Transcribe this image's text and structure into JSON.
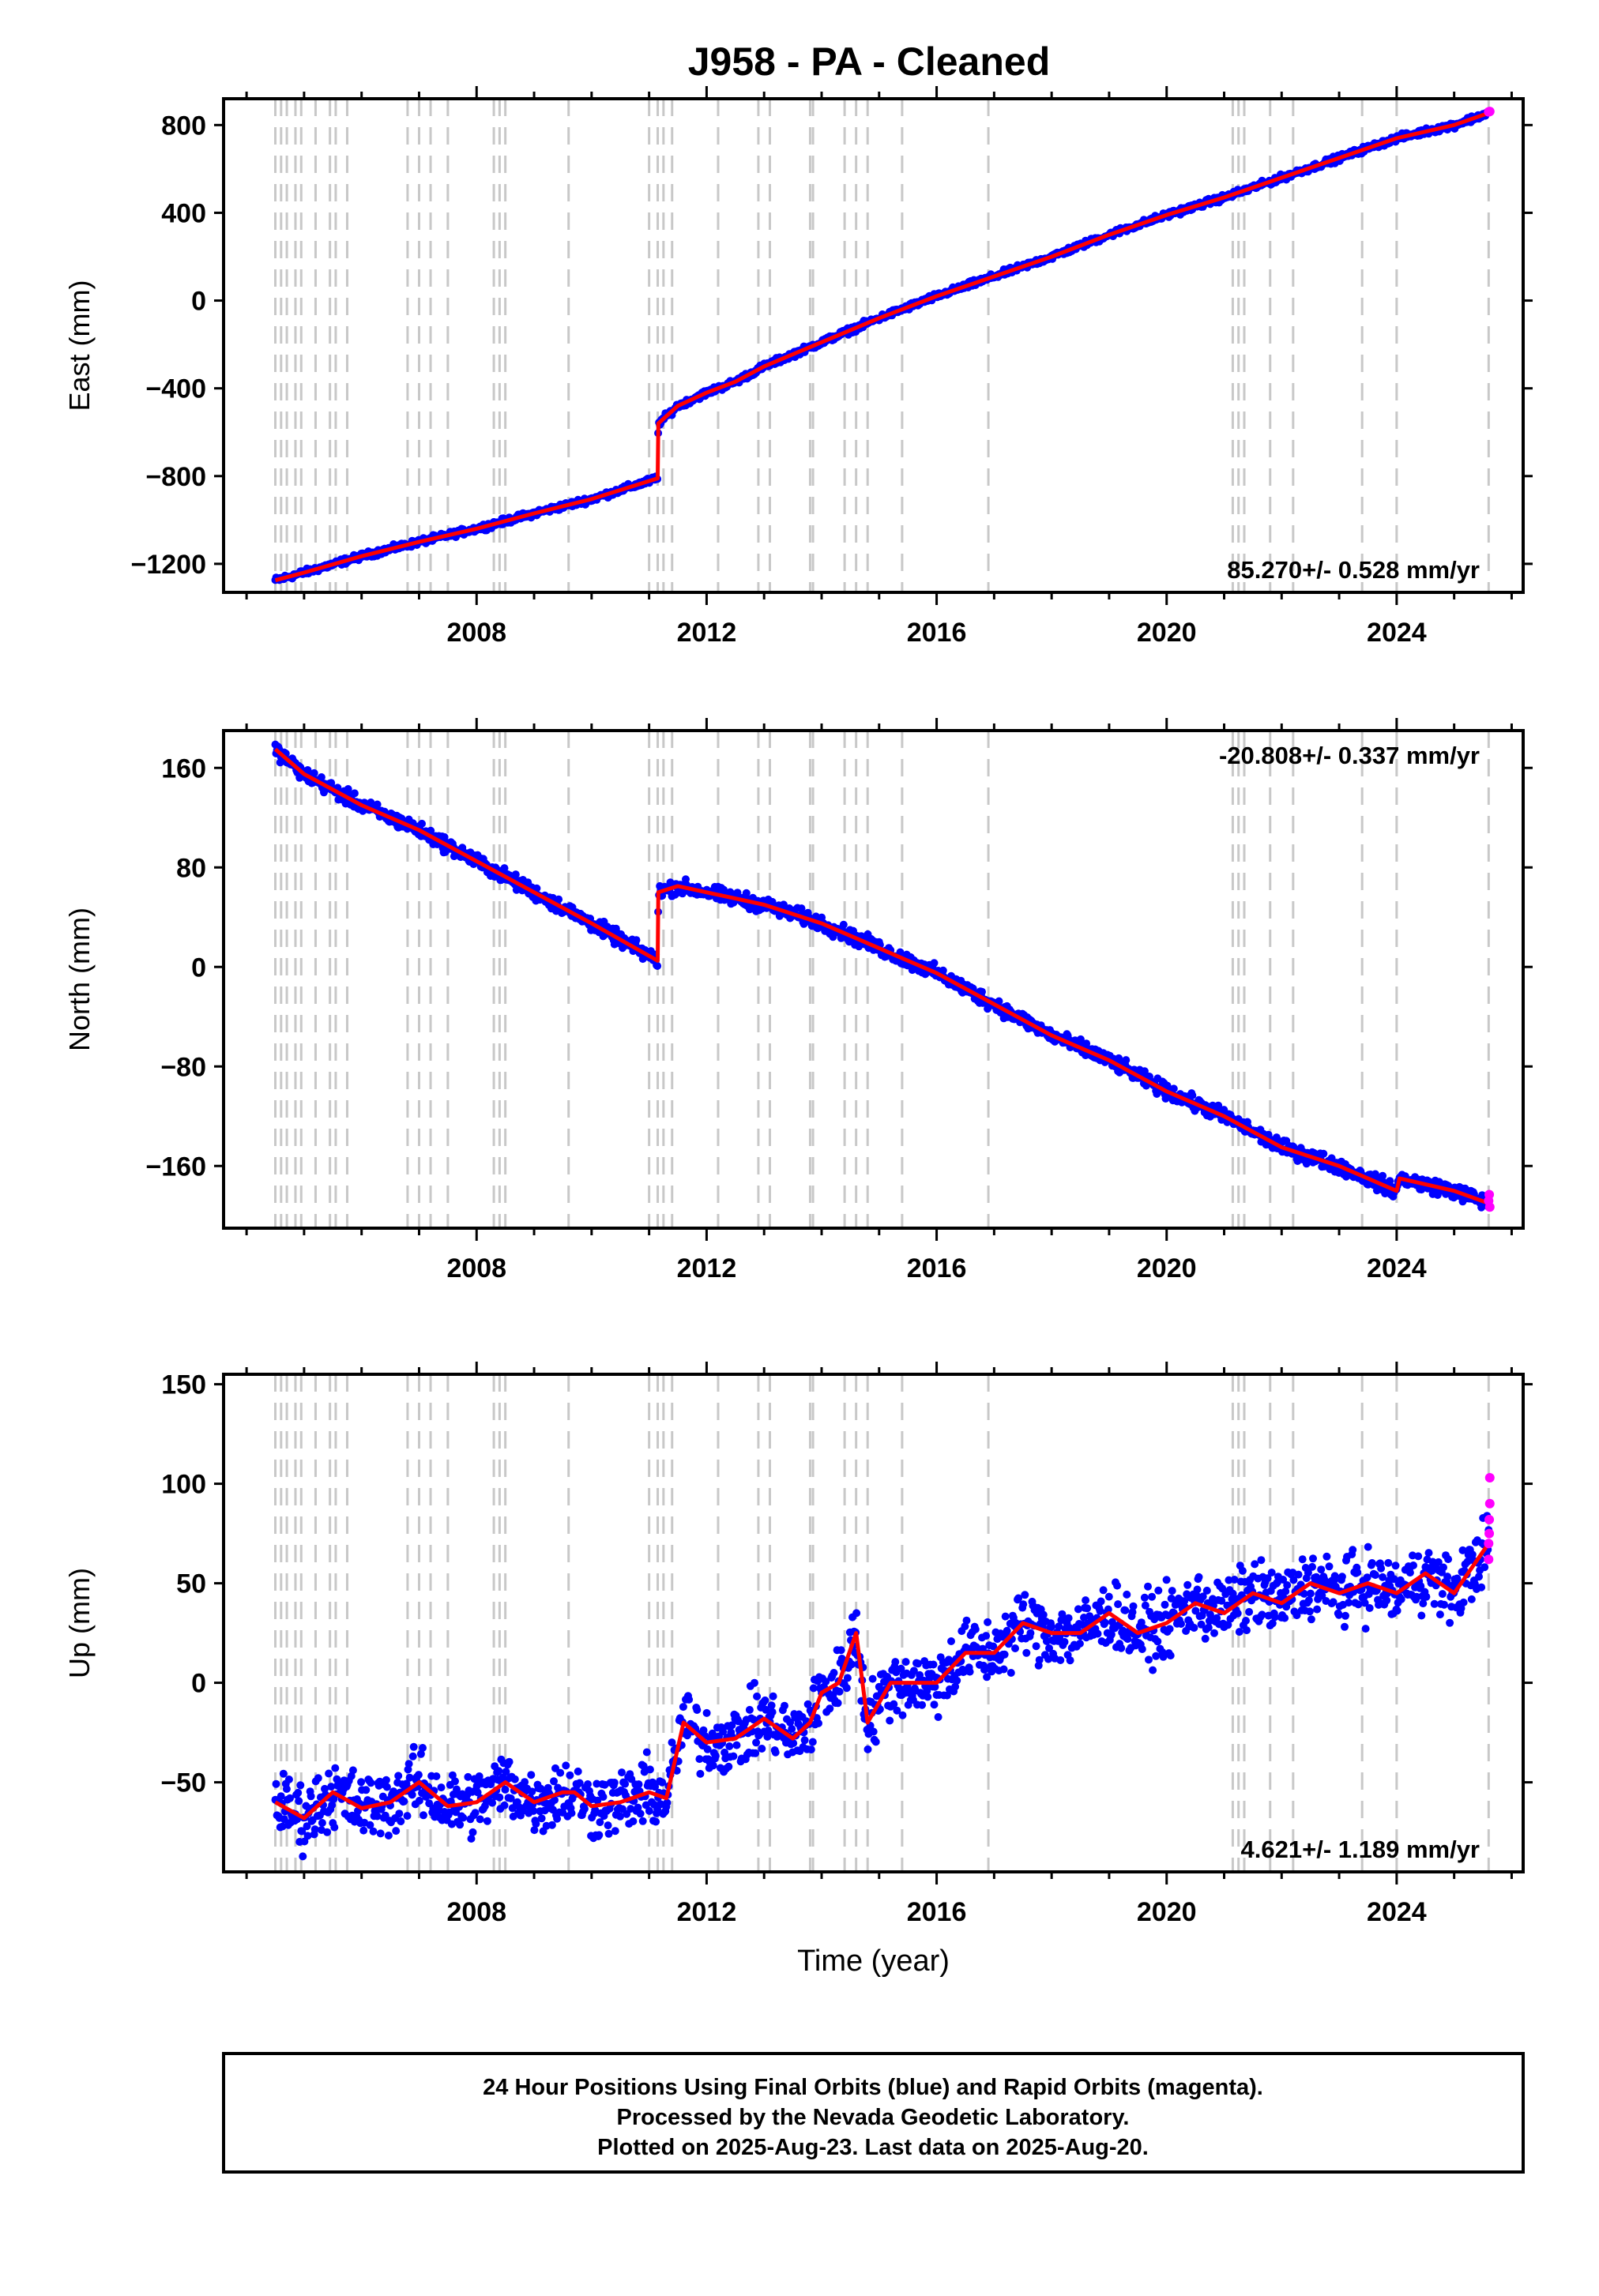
{
  "figure": {
    "title": "J958  - PA - Cleaned",
    "footer": [
      "24 Hour Positions Using Final Orbits (blue) and Rapid Orbits (magenta).",
      "Processed by the Nevada Geodetic Laboratory.",
      "Plotted on 2025-Aug-23. Last data on 2025-Aug-20."
    ],
    "colors": {
      "final": "#0000ff",
      "rapid": "#ff00ff",
      "model": "#ff0000",
      "event_lines": "#c8c8c8",
      "frame": "#000000"
    }
  },
  "chart_data": [
    {
      "type": "scatter",
      "ylabel": "East (mm)",
      "xlabel": "",
      "rate_label": "85.270+/- 0.528 mm/yr",
      "xlim": [
        2003.6,
        2026.2
      ],
      "ylim": [
        -1330,
        920
      ],
      "yticks": [
        -1200,
        -800,
        -400,
        0,
        400,
        800
      ],
      "ytick_labels": [
        "−1200",
        "−800",
        "−400",
        "0",
        "400",
        "800"
      ],
      "xticks": [
        2008,
        2012,
        2016,
        2020,
        2024
      ],
      "xtick_labels": [
        "2008",
        "2012",
        "2016",
        "2020",
        "2024"
      ],
      "grid": false,
      "model": [
        [
          2004.5,
          -1275
        ],
        [
          2005.0,
          -1240
        ],
        [
          2006.0,
          -1165
        ],
        [
          2007.0,
          -1100
        ],
        [
          2008.0,
          -1040
        ],
        [
          2009.0,
          -970
        ],
        [
          2010.0,
          -905
        ],
        [
          2011.15,
          -810
        ],
        [
          2011.16,
          -560
        ],
        [
          2011.5,
          -480
        ],
        [
          2012.0,
          -420
        ],
        [
          2012.5,
          -370
        ],
        [
          2013.0,
          -300
        ],
        [
          2014.0,
          -190
        ],
        [
          2015.0,
          -80
        ],
        [
          2016.0,
          20
        ],
        [
          2017.0,
          110
        ],
        [
          2018.0,
          200
        ],
        [
          2019.0,
          300
        ],
        [
          2020.0,
          390
        ],
        [
          2021.0,
          470
        ],
        [
          2022.0,
          560
        ],
        [
          2023.0,
          650
        ],
        [
          2024.0,
          740
        ],
        [
          2025.0,
          800
        ],
        [
          2025.6,
          855
        ]
      ],
      "scatter_band": 12,
      "rapid": [
        [
          2025.6,
          860
        ],
        [
          2025.62,
          862
        ]
      ]
    },
    {
      "type": "scatter",
      "ylabel": "North (mm)",
      "xlabel": "",
      "rate_label": "-20.808+/- 0.337 mm/yr",
      "xlim": [
        2003.6,
        2026.2
      ],
      "ylim": [
        -210,
        190
      ],
      "yticks": [
        -160,
        -80,
        0,
        80,
        160
      ],
      "ytick_labels": [
        "−160",
        "−80",
        "0",
        "80",
        "160"
      ],
      "xticks": [
        2008,
        2012,
        2016,
        2020,
        2024
      ],
      "xtick_labels": [
        "2008",
        "2012",
        "2016",
        "2020",
        "2024"
      ],
      "grid": false,
      "model": [
        [
          2004.5,
          175
        ],
        [
          2005.0,
          155
        ],
        [
          2006.0,
          130
        ],
        [
          2007.0,
          110
        ],
        [
          2008.0,
          85
        ],
        [
          2009.0,
          60
        ],
        [
          2010.0,
          35
        ],
        [
          2011.15,
          5
        ],
        [
          2011.16,
          60
        ],
        [
          2011.5,
          65
        ],
        [
          2012.0,
          60
        ],
        [
          2012.5,
          55
        ],
        [
          2013.0,
          50
        ],
        [
          2014.0,
          35
        ],
        [
          2015.0,
          15
        ],
        [
          2016.0,
          -5
        ],
        [
          2017.0,
          -30
        ],
        [
          2018.0,
          -55
        ],
        [
          2019.0,
          -75
        ],
        [
          2020.0,
          -100
        ],
        [
          2021.0,
          -120
        ],
        [
          2022.0,
          -145
        ],
        [
          2023.0,
          -160
        ],
        [
          2024.0,
          -180
        ],
        [
          2024.05,
          -170
        ],
        [
          2025.0,
          -180
        ],
        [
          2025.6,
          -190
        ]
      ],
      "scatter_band": 5,
      "rapid": [
        [
          2025.6,
          -188
        ],
        [
          2025.61,
          -183
        ],
        [
          2025.62,
          -193
        ]
      ]
    },
    {
      "type": "scatter",
      "ylabel": "Up (mm)",
      "xlabel": "Time (year)",
      "rate_label": "4.621+/- 1.189 mm/yr",
      "xlim": [
        2003.6,
        2026.2
      ],
      "ylim": [
        -95,
        155
      ],
      "yticks": [
        -50,
        0,
        50,
        100,
        150
      ],
      "ytick_labels": [
        "−50",
        "0",
        "50",
        "100",
        "150"
      ],
      "xticks": [
        2008,
        2012,
        2016,
        2020,
        2024
      ],
      "xtick_labels": [
        "2008",
        "2012",
        "2016",
        "2020",
        "2024"
      ],
      "grid": false,
      "model": [
        [
          2004.5,
          -60
        ],
        [
          2005.0,
          -68
        ],
        [
          2005.5,
          -55
        ],
        [
          2006.0,
          -63
        ],
        [
          2006.5,
          -60
        ],
        [
          2007.0,
          -50
        ],
        [
          2007.5,
          -62
        ],
        [
          2008.0,
          -60
        ],
        [
          2008.5,
          -50
        ],
        [
          2009.0,
          -60
        ],
        [
          2009.5,
          -55
        ],
        [
          2009.7,
          -55
        ],
        [
          2010.0,
          -62
        ],
        [
          2010.5,
          -60
        ],
        [
          2011.0,
          -55
        ],
        [
          2011.3,
          -58
        ],
        [
          2011.6,
          -20
        ],
        [
          2012.0,
          -30
        ],
        [
          2012.5,
          -28
        ],
        [
          2013.0,
          -18
        ],
        [
          2013.5,
          -28
        ],
        [
          2013.8,
          -20
        ],
        [
          2014.0,
          -5
        ],
        [
          2014.3,
          0
        ],
        [
          2014.6,
          25
        ],
        [
          2014.8,
          -20
        ],
        [
          2015.2,
          0
        ],
        [
          2015.6,
          0
        ],
        [
          2016.0,
          0
        ],
        [
          2016.5,
          15
        ],
        [
          2017.0,
          15
        ],
        [
          2017.5,
          30
        ],
        [
          2018.0,
          25
        ],
        [
          2018.5,
          25
        ],
        [
          2019.0,
          35
        ],
        [
          2019.5,
          25
        ],
        [
          2020.0,
          30
        ],
        [
          2020.5,
          40
        ],
        [
          2021.0,
          35
        ],
        [
          2021.5,
          45
        ],
        [
          2022.0,
          40
        ],
        [
          2022.5,
          50
        ],
        [
          2023.0,
          45
        ],
        [
          2023.5,
          50
        ],
        [
          2024.0,
          45
        ],
        [
          2024.5,
          55
        ],
        [
          2025.0,
          45
        ],
        [
          2025.6,
          70
        ]
      ],
      "scatter_band": 14,
      "rapid": [
        [
          2025.6,
          62
        ],
        [
          2025.6,
          70
        ],
        [
          2025.61,
          75
        ],
        [
          2025.61,
          82
        ],
        [
          2025.62,
          90
        ],
        [
          2025.62,
          103
        ]
      ]
    }
  ],
  "event_lines": [
    2004.5,
    2004.6,
    2004.7,
    2004.85,
    2004.95,
    2005.2,
    2005.45,
    2005.55,
    2005.75,
    2006.8,
    2007.0,
    2007.2,
    2007.5,
    2008.3,
    2008.4,
    2008.5,
    2009.6,
    2011.0,
    2011.15,
    2011.25,
    2011.4,
    2012.2,
    2012.9,
    2013.1,
    2013.8,
    2013.85,
    2014.4,
    2014.6,
    2014.8,
    2015.4,
    2016.9,
    2021.15,
    2021.25,
    2021.35,
    2021.8,
    2022.2,
    2023.4,
    2024.0,
    2025.6
  ]
}
